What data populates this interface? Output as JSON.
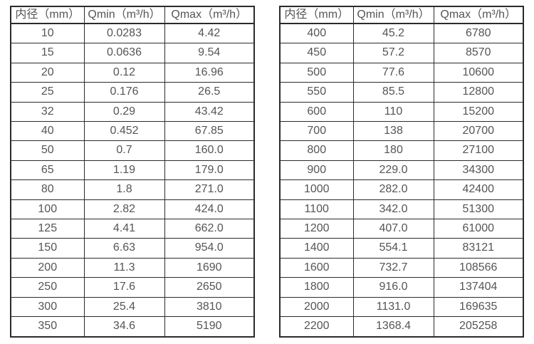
{
  "colors": {
    "border": "#2b2b2b",
    "text": "#555555",
    "background": "#ffffff"
  },
  "table_left": {
    "headers": [
      "内径（mm）",
      "Qmin（m³/h）",
      "Qmax（m³/h）"
    ],
    "rows": [
      [
        "10",
        "0.0283",
        "4.42"
      ],
      [
        "15",
        "0.0636",
        "9.54"
      ],
      [
        "20",
        "0.12",
        "16.96"
      ],
      [
        "25",
        "0.176",
        "26.5"
      ],
      [
        "32",
        "0.29",
        "43.42"
      ],
      [
        "40",
        "0.452",
        "67.85"
      ],
      [
        "50",
        "0.7",
        "160.0"
      ],
      [
        "65",
        "1.19",
        "179.0"
      ],
      [
        "80",
        "1.8",
        "271.0"
      ],
      [
        "100",
        "2.82",
        "424.0"
      ],
      [
        "125",
        "4.41",
        "662.0"
      ],
      [
        "150",
        "6.63",
        "954.0"
      ],
      [
        "200",
        "11.3",
        "1690"
      ],
      [
        "250",
        "17.6",
        "2650"
      ],
      [
        "300",
        "25.4",
        "3810"
      ],
      [
        "350",
        "34.6",
        "5190"
      ]
    ]
  },
  "table_right": {
    "headers": [
      "内径（mm）",
      "Qmin（m³/h）",
      "Qmax（m³/h）"
    ],
    "rows": [
      [
        "400",
        "45.2",
        "6780"
      ],
      [
        "450",
        "57.2",
        "8570"
      ],
      [
        "500",
        "77.6",
        "10600"
      ],
      [
        "550",
        "85.5",
        "12800"
      ],
      [
        "600",
        "110",
        "15200"
      ],
      [
        "700",
        "138",
        "20700"
      ],
      [
        "800",
        "180",
        "27100"
      ],
      [
        "900",
        "229.0",
        "34300"
      ],
      [
        "1000",
        "282.0",
        "42400"
      ],
      [
        "1100",
        "342.0",
        "51300"
      ],
      [
        "1200",
        "407.0",
        "61000"
      ],
      [
        "1400",
        "554.1",
        "83121"
      ],
      [
        "1600",
        "732.7",
        "108566"
      ],
      [
        "1800",
        "916.0",
        "137404"
      ],
      [
        "2000",
        "1131.0",
        "169635"
      ],
      [
        "2200",
        "1368.4",
        "205258"
      ]
    ]
  }
}
